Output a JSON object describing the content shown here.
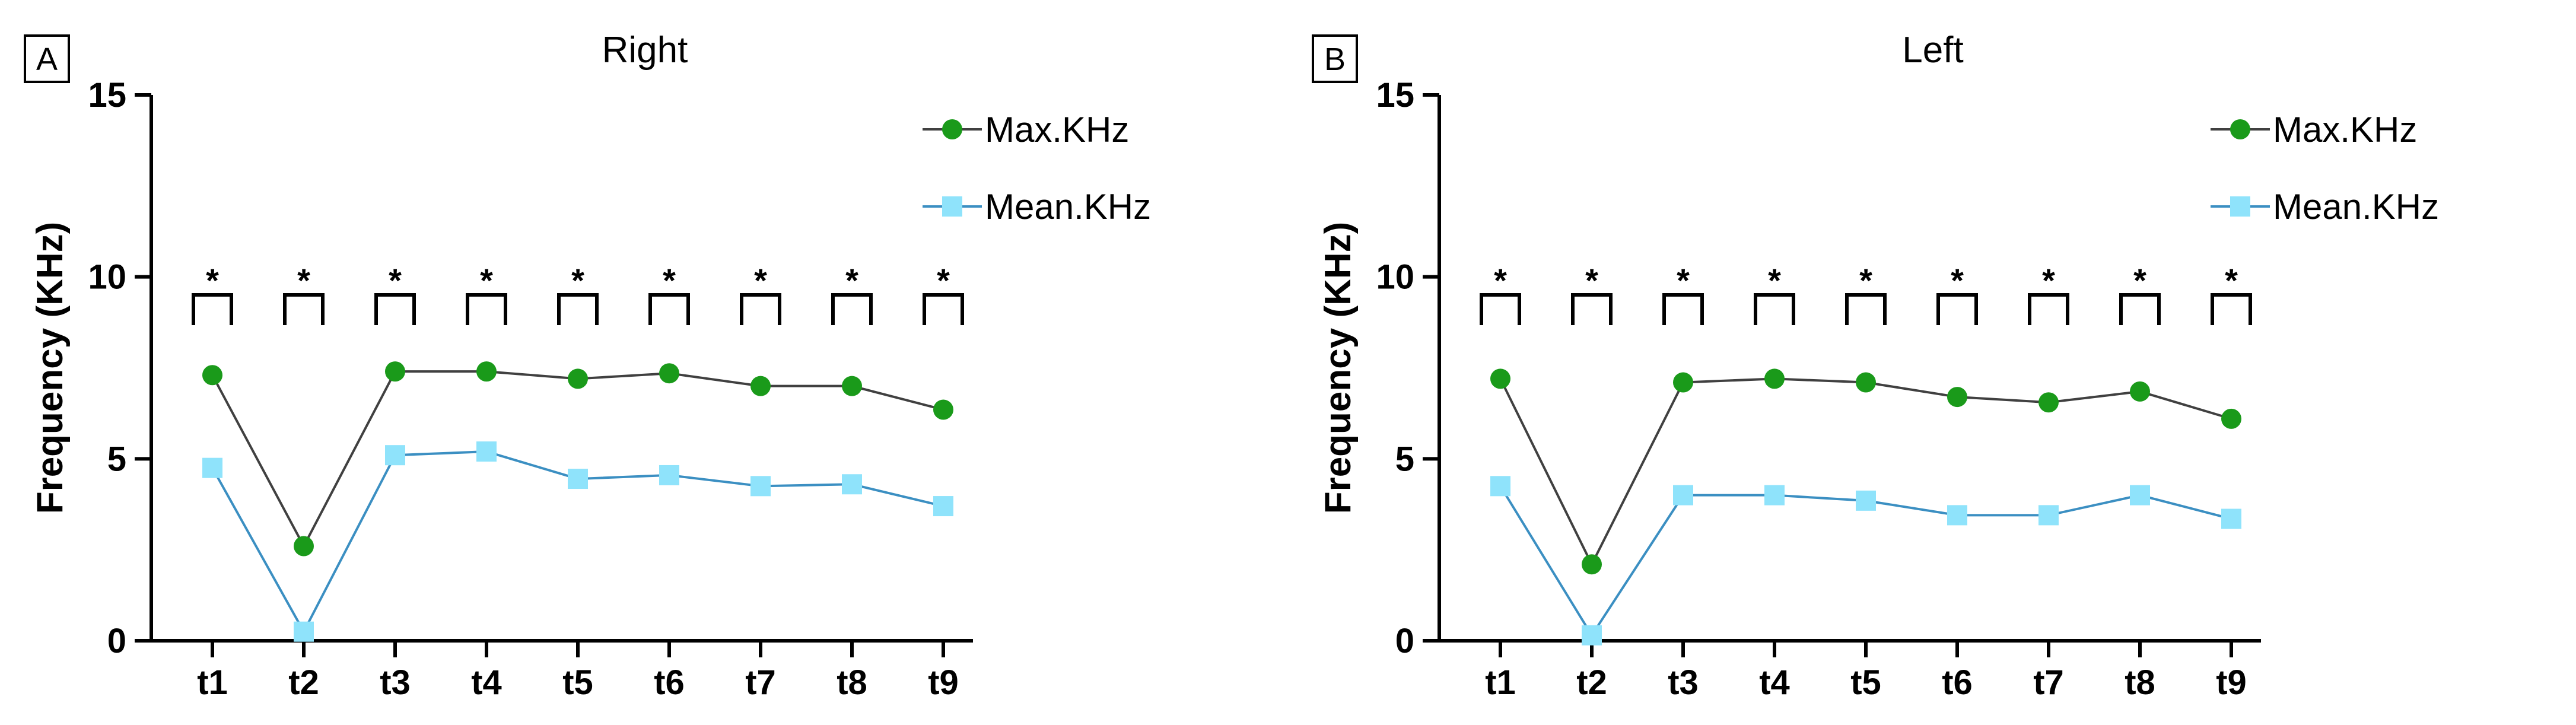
{
  "chart_data": [
    {
      "panel_label": "A",
      "type": "line",
      "title": "Right",
      "ylabel": "Frequency (KHz)",
      "xlabel": "",
      "categories": [
        "t1",
        "t2",
        "t3",
        "t4",
        "t5",
        "t6",
        "t7",
        "t8",
        "t9"
      ],
      "ylim": [
        0,
        15
      ],
      "yticks": [
        "0",
        "5",
        "10",
        "15"
      ],
      "series": [
        {
          "name": "Max.KHz",
          "color": "#1a9a1a",
          "line_color": "#404040",
          "marker": "circle",
          "values": [
            7.3,
            2.6,
            7.4,
            7.4,
            7.2,
            7.35,
            7.0,
            7.0,
            6.35
          ]
        },
        {
          "name": "Mean.KHz",
          "color": "#8fe3fb",
          "line_color": "#3b8fc2",
          "marker": "square",
          "values": [
            4.75,
            0.25,
            5.1,
            5.2,
            4.45,
            4.55,
            4.25,
            4.3,
            3.7
          ]
        }
      ],
      "significance": [
        "*",
        "*",
        "*",
        "*",
        "*",
        "*",
        "*",
        "*",
        "*"
      ],
      "grid": false,
      "legend_position": "top-right"
    },
    {
      "panel_label": "B",
      "type": "line",
      "title": "Left",
      "ylabel": "Frequency (KHz)",
      "xlabel": "",
      "categories": [
        "t1",
        "t2",
        "t3",
        "t4",
        "t5",
        "t6",
        "t7",
        "t8",
        "t9"
      ],
      "ylim": [
        0,
        15
      ],
      "yticks": [
        "0",
        "5",
        "10",
        "15"
      ],
      "series": [
        {
          "name": "Max.KHz",
          "color": "#1a9a1a",
          "line_color": "#404040",
          "marker": "circle",
          "values": [
            7.2,
            2.1,
            7.1,
            7.2,
            7.1,
            6.7,
            6.55,
            6.85,
            6.1
          ]
        },
        {
          "name": "Mean.KHz",
          "color": "#8fe3fb",
          "line_color": "#3b8fc2",
          "marker": "square",
          "values": [
            4.25,
            0.15,
            4.0,
            4.0,
            3.85,
            3.45,
            3.45,
            4.0,
            3.35
          ]
        }
      ],
      "significance": [
        "*",
        "*",
        "*",
        "*",
        "*",
        "*",
        "*",
        "*",
        "*"
      ],
      "grid": false,
      "legend_position": "top-right"
    }
  ]
}
